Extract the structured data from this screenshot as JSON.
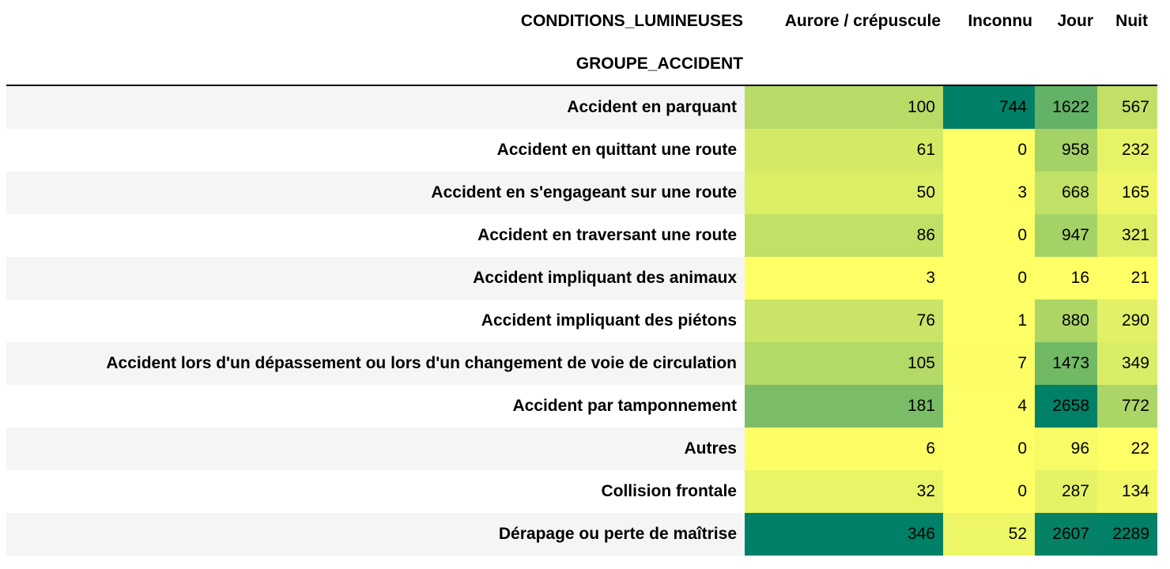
{
  "table": {
    "columns_index_name": "CONDITIONS_LUMINEUSES",
    "rows_index_name": "GROUPE_ACCIDENT",
    "columns": [
      "Aurore / crépuscule",
      "Inconnu",
      "Jour",
      "Nuit"
    ],
    "rows": [
      "Accident en parquant",
      "Accident en quittant une route",
      "Accident en s'engageant sur une route",
      "Accident en traversant une route",
      "Accident impliquant des animaux",
      "Accident impliquant des piétons",
      "Accident lors d'un dépassement ou lors d'un changement de voie de circulation",
      "Accident par tamponnement",
      "Autres",
      "Collision frontale",
      "Dérapage ou perte de maîtrise"
    ]
  },
  "chart_data": {
    "type": "heatmap",
    "colormap": "summer_r",
    "color_low": "#ffff66",
    "color_high": "#008066",
    "normalization": "per-column",
    "x": [
      "Aurore / crépuscule",
      "Inconnu",
      "Jour",
      "Nuit"
    ],
    "y": [
      "Accident en parquant",
      "Accident en quittant une route",
      "Accident en s'engageant sur une route",
      "Accident en traversant une route",
      "Accident impliquant des animaux",
      "Accident impliquant des piétons",
      "Accident lors d'un dépassement ou lors d'un changement de voie de circulation",
      "Accident par tamponnement",
      "Autres",
      "Collision frontale",
      "Dérapage ou perte de maîtrise"
    ],
    "values": [
      [
        100,
        744,
        1622,
        567
      ],
      [
        61,
        0,
        958,
        232
      ],
      [
        50,
        3,
        668,
        165
      ],
      [
        86,
        0,
        947,
        321
      ],
      [
        3,
        0,
        16,
        21
      ],
      [
        76,
        1,
        880,
        290
      ],
      [
        105,
        7,
        1473,
        349
      ],
      [
        181,
        4,
        2658,
        772
      ],
      [
        6,
        0,
        96,
        22
      ],
      [
        32,
        0,
        287,
        134
      ],
      [
        346,
        52,
        2607,
        2289
      ]
    ]
  }
}
